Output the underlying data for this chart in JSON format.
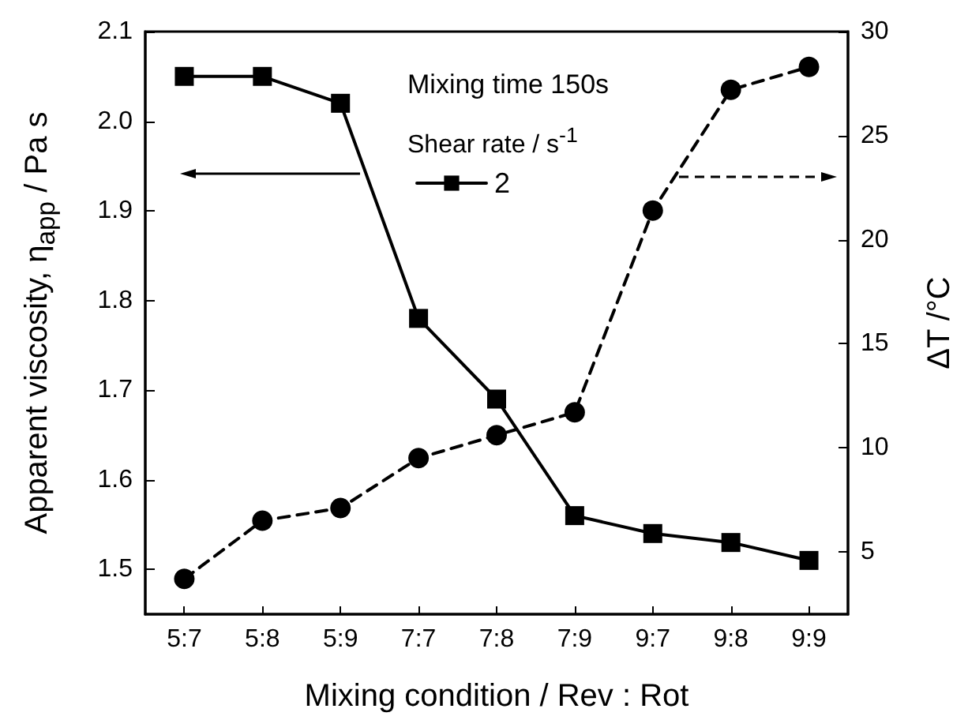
{
  "chart_data": {
    "type": "line",
    "xlabel": "Mixing condition / Rev : Rot",
    "ylabel": "Apparent viscosity, η$_{app}$ / Pa s",
    "y2label": "ΔT /°C",
    "legend_title": "Shear rate / s$^{-1}$",
    "annotations": [
      "Mixing time 150s"
    ],
    "categories": [
      "5:7",
      "5:8",
      "5:9",
      "7:7",
      "7:8",
      "7:9",
      "9:7",
      "9:8",
      "9:9"
    ],
    "series": [
      {
        "name": "2",
        "color": "#000000",
        "marker": "square",
        "line_style": "solid",
        "values": [
          2.05,
          2.05,
          2.02,
          1.78,
          1.69,
          1.56,
          1.54,
          1.53,
          1.51
        ]
      },
      {
        "color": "#000000",
        "marker": "circle",
        "line_style": "dashed",
        "axis": "y2",
        "values": [
          3.7,
          6.5,
          7.1,
          9.5,
          10.6,
          11.7,
          21.4,
          27.2,
          28.3
        ]
      }
    ],
    "ylim": [
      1.45,
      2.1
    ],
    "yticks": [
      1.5,
      1.6,
      1.7,
      1.8,
      1.9,
      {
        "value": 2,
        "label": "2.0"
      },
      2.1
    ],
    "y2lim": [
      2,
      30
    ],
    "y2ticks": [
      5,
      10,
      15,
      20,
      25,
      30
    ],
    "grid": false,
    "legend": "top right"
  }
}
